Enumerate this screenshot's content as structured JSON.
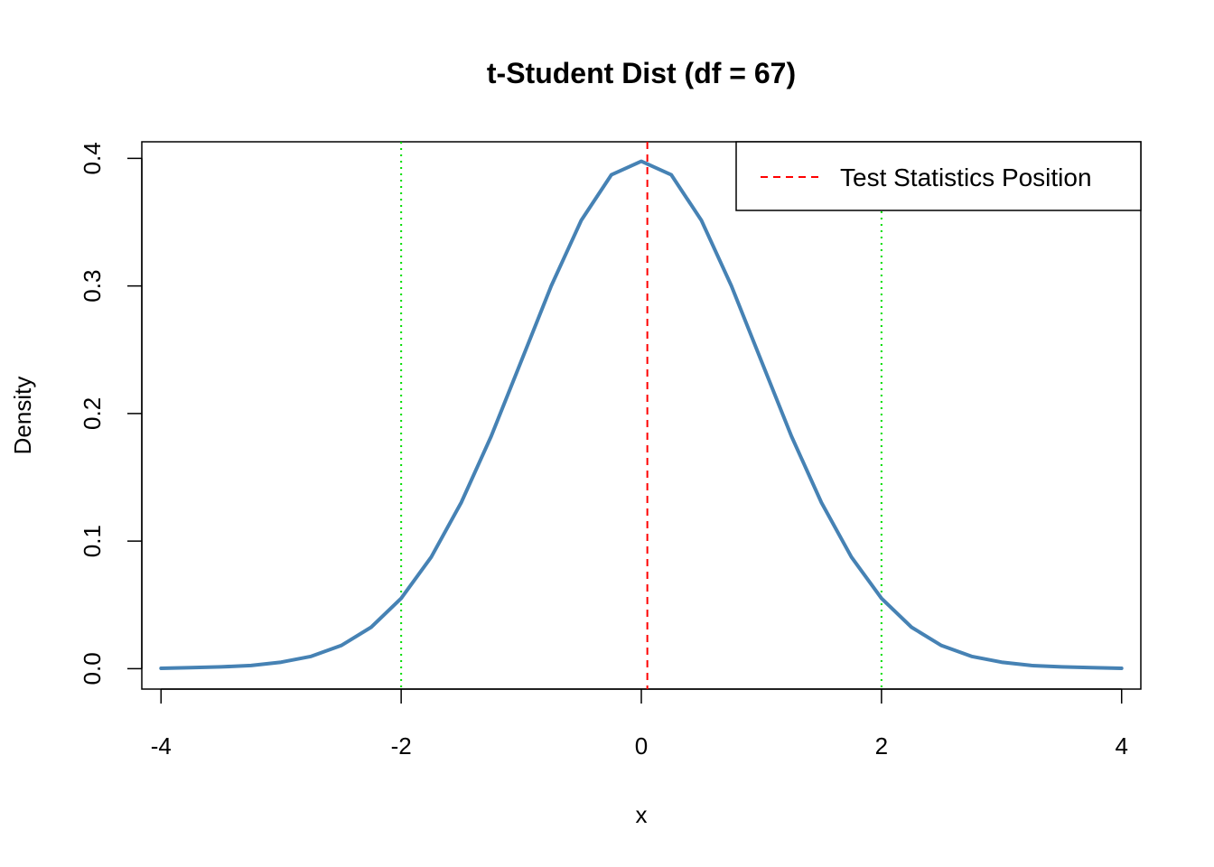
{
  "chart_data": {
    "type": "line",
    "title": "t-Student Dist (df = 67)",
    "xlabel": "x",
    "ylabel": "Density",
    "xlim": [
      -4.16,
      4.16
    ],
    "ylim": [
      -0.016,
      0.413
    ],
    "x_ticks": [
      -4,
      -2,
      0,
      2,
      4
    ],
    "x_tick_labels": [
      "-4",
      "-2",
      "0",
      "2",
      "4"
    ],
    "y_ticks": [
      0.0,
      0.1,
      0.2,
      0.3,
      0.4
    ],
    "y_tick_labels": [
      "0.0",
      "0.1",
      "0.2",
      "0.3",
      "0.4"
    ],
    "df": 67,
    "series": [
      {
        "color": "#4682B4",
        "x": [
          -4.0,
          -3.75,
          -3.5,
          -3.25,
          -3.0,
          -2.75,
          -2.5,
          -2.25,
          -2.0,
          -1.75,
          -1.5,
          -1.25,
          -1.0,
          -0.75,
          -0.5,
          -0.25,
          0.0,
          0.25,
          0.5,
          0.75,
          1.0,
          1.25,
          1.5,
          1.75,
          2.0,
          2.25,
          2.5,
          2.75,
          3.0,
          3.25,
          3.5,
          3.75,
          4.0
        ],
        "y": [
          0.0003,
          0.0008,
          0.0014,
          0.0025,
          0.0051,
          0.0096,
          0.0181,
          0.0325,
          0.0551,
          0.0875,
          0.1302,
          0.1822,
          0.2411,
          0.3001,
          0.3514,
          0.3871,
          0.3977,
          0.3871,
          0.3514,
          0.3001,
          0.2411,
          0.1822,
          0.1302,
          0.0875,
          0.0551,
          0.0325,
          0.0181,
          0.0096,
          0.0051,
          0.0025,
          0.0014,
          0.0008,
          0.0003
        ]
      }
    ],
    "critical_lines": {
      "x": [
        -2.0,
        2.0
      ],
      "color": "#00DD00",
      "style": "dotted"
    },
    "test_statistic_line": {
      "x": 0.05,
      "color": "#FF0000",
      "style": "dashed"
    },
    "legend": {
      "position": "top-right",
      "entries": [
        {
          "label": "Test Statistics Position",
          "color": "#FF0000",
          "style": "dashed"
        }
      ]
    }
  }
}
